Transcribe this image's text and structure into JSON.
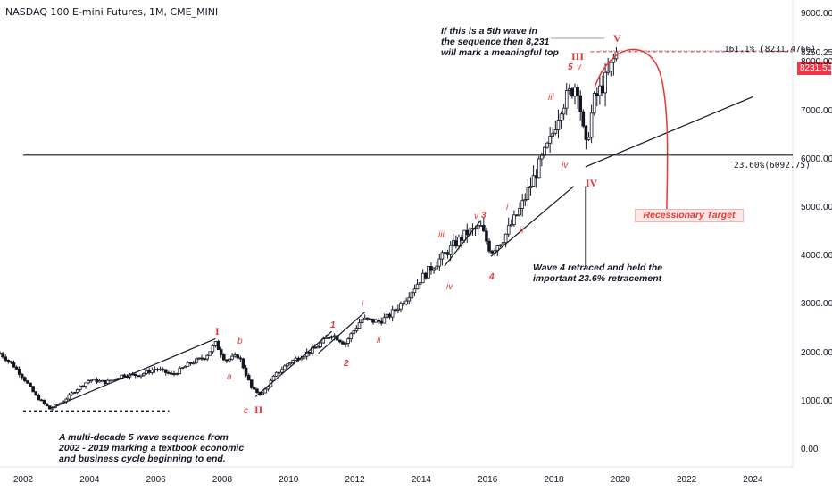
{
  "header": {
    "title": "NASDAQ 100 E-mini Futures, 1M, CME_MINI"
  },
  "colors": {
    "accent": "#e53935",
    "candle": "#131722",
    "price_tag": "#f23645",
    "target_fill": "#fde7e6"
  },
  "annotations": {
    "top_note": "If this is a 5th wave in\nthe sequence then 8,231\nwill mark a meaningful top",
    "wave4_note": "Wave 4 retraced and held the\nimportant 23.6% retracement",
    "bottom_note": "A multi-decade 5 wave sequence from\n2002 - 2019 marking a textbook economic\nand business cycle beginning to end.",
    "target_label": "Recessionary Target",
    "fib_1618": "161.1% (8231.4766)",
    "fib_236": "23.60%(6092.75)",
    "current_price": "8231.50",
    "fib_price": "8250.25"
  },
  "wave_labels": {
    "I": "I",
    "II": "II",
    "III": "III",
    "IV": "IV",
    "V": "V",
    "w1": "1",
    "w2": "2",
    "w3": "3",
    "w4": "4",
    "w5": "5",
    "a": "a",
    "b": "b",
    "c": "c",
    "i_a": "i",
    "ii_a": "ii",
    "iii_a": "iii",
    "iv_a": "iv",
    "v_a": "v",
    "iii_b": "iii",
    "iv_b": "iv",
    "v_b": "v",
    "i_c": "i",
    "ii_c": "ii"
  },
  "chart_data": {
    "type": "candlestick",
    "title": "NASDAQ 100 E-mini Futures, 1M, CME_MINI",
    "y_axis": {
      "ticks": [
        "0.00",
        "1000.00",
        "2000.00",
        "3000.00",
        "4000.00",
        "5000.00",
        "6000.00",
        "7000.00",
        "8000.00",
        "9000.00"
      ],
      "range": [
        -350,
        9300
      ]
    },
    "x_axis": {
      "ticks": [
        "2002",
        "2004",
        "2006",
        "2008",
        "2010",
        "2012",
        "2014",
        "2016",
        "2018",
        "2020",
        "2022",
        "2024"
      ],
      "range": [
        2001.3,
        2025.2
      ]
    },
    "price_path": [
      [
        2001.3,
        2000
      ],
      [
        2001.7,
        1750
      ],
      [
        2002.0,
        1500
      ],
      [
        2002.4,
        1100
      ],
      [
        2002.8,
        850
      ],
      [
        2003.2,
        1000
      ],
      [
        2003.6,
        1250
      ],
      [
        2004.0,
        1450
      ],
      [
        2004.5,
        1400
      ],
      [
        2005.0,
        1550
      ],
      [
        2005.5,
        1550
      ],
      [
        2006.0,
        1680
      ],
      [
        2006.5,
        1550
      ],
      [
        2007.0,
        1780
      ],
      [
        2007.5,
        1930
      ],
      [
        2007.8,
        2200
      ],
      [
        2008.1,
        1850
      ],
      [
        2008.5,
        1950
      ],
      [
        2008.9,
        1250
      ],
      [
        2009.2,
        1150
      ],
      [
        2009.6,
        1550
      ],
      [
        2010.0,
        1800
      ],
      [
        2010.4,
        1950
      ],
      [
        2010.8,
        2100
      ],
      [
        2011.3,
        2400
      ],
      [
        2011.7,
        2200
      ],
      [
        2012.2,
        2700
      ],
      [
        2012.7,
        2650
      ],
      [
        2013.0,
        2750
      ],
      [
        2013.5,
        3100
      ],
      [
        2014.0,
        3550
      ],
      [
        2014.5,
        3900
      ],
      [
        2015.0,
        4250
      ],
      [
        2015.4,
        4500
      ],
      [
        2015.8,
        4600
      ],
      [
        2016.1,
        4100
      ],
      [
        2016.5,
        4400
      ],
      [
        2017.0,
        5000
      ],
      [
        2017.5,
        5800
      ],
      [
        2017.9,
        6400
      ],
      [
        2018.2,
        7100
      ],
      [
        2018.7,
        7600
      ],
      [
        2018.95,
        6200
      ],
      [
        2019.2,
        7200
      ],
      [
        2019.6,
        7700
      ],
      [
        2019.9,
        8231
      ]
    ],
    "fib_levels": [
      {
        "label": "161.1% (8231.4766)",
        "value": 8231.48
      },
      {
        "label": "23.60%(6092.75)",
        "value": 6092.75
      }
    ],
    "projection": {
      "label": "Recessionary Target",
      "from": [
        2019.9,
        8231
      ],
      "to": [
        2021.4,
        4800
      ]
    }
  }
}
